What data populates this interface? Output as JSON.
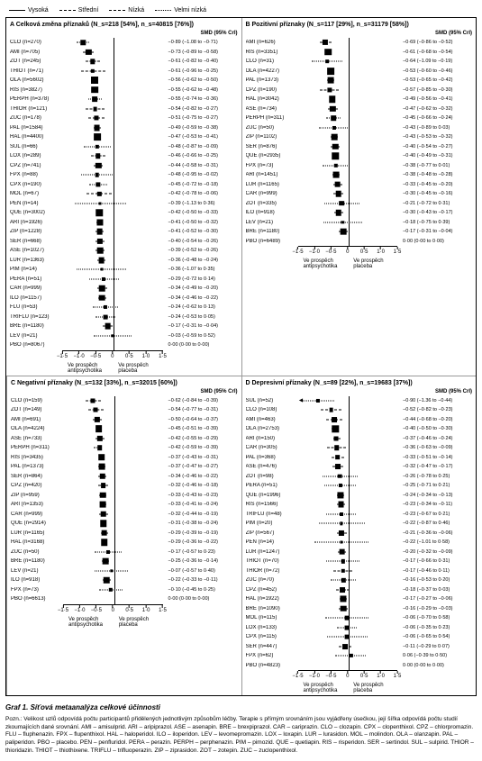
{
  "legend": [
    {
      "label": "Vysoká",
      "dash": "solid"
    },
    {
      "label": "Střední",
      "dash": "line-dot"
    },
    {
      "label": "Nízká",
      "dash": "dashed"
    },
    {
      "label": "Velmi nízká",
      "dash": "dotted"
    }
  ],
  "plot": {
    "xlim": [
      -1.5,
      1.5
    ],
    "ticks": [
      -1.5,
      -1.0,
      -0.5,
      0,
      0.5,
      1.0,
      1.5
    ],
    "ref_lines": [
      {
        "x": 0,
        "style": "solid",
        "color": "#000"
      }
    ],
    "axis_left_label": "Ve prospěch antipsychotika",
    "axis_right_label": "Ve prospěch placeba",
    "hdr_smd": "SMD (95% CrI)",
    "marker_min": 3,
    "marker_max": 8
  },
  "panels": [
    {
      "id": "A",
      "title": "A   Celková změna příznaků (N_s=218 [54%], n_s=40815 [76%])",
      "rows": [
        {
          "drug": "CLO",
          "n": 270,
          "est": -0.89,
          "lo": -1.08,
          "hi": -0.71,
          "dash": "dotted"
        },
        {
          "drug": "AMI",
          "n": 705,
          "est": -0.73,
          "lo": -0.89,
          "hi": -0.58,
          "dash": "dashed"
        },
        {
          "drug": "ZOT",
          "n": 245,
          "est": -0.61,
          "lo": -0.82,
          "hi": -0.4,
          "dash": "dashed"
        },
        {
          "drug": "THIOT",
          "n": 71,
          "est": -0.61,
          "lo": -0.96,
          "hi": -0.25,
          "dash": "dashed"
        },
        {
          "drug": "OLA",
          "n": 5602,
          "est": -0.56,
          "lo": -0.62,
          "hi": -0.5,
          "dash": "solid"
        },
        {
          "drug": "RIS",
          "n": 3827,
          "est": -0.55,
          "lo": -0.62,
          "hi": -0.48,
          "dash": "solid"
        },
        {
          "drug": "PERPH",
          "n": 378,
          "est": -0.55,
          "lo": -0.74,
          "hi": -0.36,
          "dash": "dotted"
        },
        {
          "drug": "THIOR",
          "n": 121,
          "est": -0.54,
          "lo": -0.82,
          "hi": -0.27,
          "dash": "dashed"
        },
        {
          "drug": "ZUC",
          "n": 178,
          "est": -0.51,
          "lo": -0.75,
          "hi": -0.27,
          "dash": "dashed"
        },
        {
          "drug": "PAL",
          "n": 1584,
          "est": -0.49,
          "lo": -0.59,
          "hi": -0.38,
          "dash": "solid"
        },
        {
          "drug": "HAL",
          "n": 4400,
          "est": -0.47,
          "lo": -0.53,
          "hi": -0.41,
          "dash": "solid"
        },
        {
          "drug": "SUL",
          "n": 66,
          "est": -0.48,
          "lo": -0.87,
          "hi": -0.09,
          "dash": "dotted"
        },
        {
          "drug": "LOX",
          "n": 289,
          "est": -0.46,
          "lo": -0.66,
          "hi": -0.25,
          "dash": "dashed"
        },
        {
          "drug": "CPZ",
          "n": 741,
          "est": -0.44,
          "lo": -0.58,
          "hi": -0.31,
          "dash": "dashed"
        },
        {
          "drug": "FPX",
          "n": 88,
          "est": -0.48,
          "lo": -0.95,
          "hi": -0.02,
          "dash": "dotted"
        },
        {
          "drug": "CPX",
          "n": 190,
          "est": -0.45,
          "lo": -0.72,
          "hi": -0.18,
          "dash": "dotted"
        },
        {
          "drug": "MOL",
          "n": 67,
          "est": -0.42,
          "lo": -0.78,
          "hi": -0.06,
          "dash": "dashed"
        },
        {
          "drug": "PEN",
          "n": 14,
          "est": -0.39,
          "lo": -1.13,
          "hi": 0.36,
          "dash": "dotted"
        },
        {
          "drug": "QUE",
          "n": 3002,
          "est": -0.42,
          "lo": -0.5,
          "hi": -0.33,
          "dash": "line-dot"
        },
        {
          "drug": "ARI",
          "n": 1926,
          "est": -0.41,
          "lo": -0.5,
          "hi": -0.32,
          "dash": "solid"
        },
        {
          "drug": "ZIP",
          "n": 1228,
          "est": -0.41,
          "lo": -0.52,
          "hi": -0.3,
          "dash": "line-dot"
        },
        {
          "drug": "SER",
          "n": 668,
          "est": -0.4,
          "lo": -0.54,
          "hi": -0.26,
          "dash": "line-dot"
        },
        {
          "drug": "ASE",
          "n": 1027,
          "est": -0.39,
          "lo": -0.52,
          "hi": -0.26,
          "dash": "solid"
        },
        {
          "drug": "LUR",
          "n": 1363,
          "est": -0.36,
          "lo": -0.48,
          "hi": -0.24,
          "dash": "solid"
        },
        {
          "drug": "PIM",
          "n": 14,
          "est": -0.36,
          "lo": -1.07,
          "hi": 0.35,
          "dash": "dotted"
        },
        {
          "drug": "PERA",
          "n": 51,
          "est": -0.29,
          "lo": -0.72,
          "hi": 0.14,
          "dash": "dotted"
        },
        {
          "drug": "CAR",
          "n": 999,
          "est": -0.34,
          "lo": -0.49,
          "hi": -0.2,
          "dash": "solid"
        },
        {
          "drug": "ILO",
          "n": 1157,
          "est": -0.34,
          "lo": -0.46,
          "hi": -0.22,
          "dash": "line-dot"
        },
        {
          "drug": "FLU",
          "n": 53,
          "est": -0.24,
          "lo": -0.62,
          "hi": 0.13,
          "dash": "dotted"
        },
        {
          "drug": "TRIFLU",
          "n": 123,
          "est": -0.24,
          "lo": -0.53,
          "hi": 0.05,
          "dash": "dotted"
        },
        {
          "drug": "BRE",
          "n": 1180,
          "est": -0.17,
          "lo": -0.31,
          "hi": -0.04,
          "dash": "line-dot"
        },
        {
          "drug": "LEV",
          "n": 21,
          "est": -0.03,
          "lo": -0.59,
          "hi": 0.52,
          "dash": "dotted"
        },
        {
          "drug": "PBO",
          "n": 8067,
          "est": 0.0,
          "lo": 0.0,
          "hi": 0.0,
          "ref": true
        }
      ]
    },
    {
      "id": "B",
      "title": "B   Pozitivní příznaky (N_s=117 [29%], n_s=31179 [58%])",
      "rows": [
        {
          "drug": "AMI",
          "n": 626,
          "est": -0.69,
          "lo": -0.86,
          "hi": -0.52,
          "dash": "line-dot"
        },
        {
          "drug": "RIS",
          "n": 3351,
          "est": -0.61,
          "lo": -0.68,
          "hi": -0.54,
          "dash": "solid"
        },
        {
          "drug": "CLO",
          "n": 31,
          "est": -0.64,
          "lo": -1.09,
          "hi": -0.19,
          "dash": "dotted"
        },
        {
          "drug": "OLA",
          "n": 4227,
          "est": -0.53,
          "lo": -0.6,
          "hi": -0.46,
          "dash": "solid"
        },
        {
          "drug": "PAL",
          "n": 1373,
          "est": -0.53,
          "lo": -0.65,
          "hi": -0.42,
          "dash": "solid"
        },
        {
          "drug": "CPZ",
          "n": 190,
          "est": -0.57,
          "lo": -0.85,
          "hi": -0.3,
          "dash": "dashed"
        },
        {
          "drug": "HAL",
          "n": 3042,
          "est": -0.49,
          "lo": -0.56,
          "hi": -0.41,
          "dash": "solid"
        },
        {
          "drug": "ASE",
          "n": 734,
          "est": -0.47,
          "lo": -0.62,
          "hi": -0.32,
          "dash": "solid"
        },
        {
          "drug": "PERPH",
          "n": 311,
          "est": -0.45,
          "lo": -0.66,
          "hi": -0.24,
          "dash": "dotted"
        },
        {
          "drug": "ZUC",
          "n": 50,
          "est": -0.43,
          "lo": -0.89,
          "hi": 0.03,
          "dash": "dotted"
        },
        {
          "drug": "ZIP",
          "n": 1102,
          "est": -0.43,
          "lo": -0.53,
          "hi": -0.32,
          "dash": "line-dot"
        },
        {
          "drug": "SER",
          "n": 876,
          "est": -0.4,
          "lo": -0.54,
          "hi": -0.27,
          "dash": "line-dot"
        },
        {
          "drug": "QUE",
          "n": 2935,
          "est": -0.4,
          "lo": -0.49,
          "hi": -0.31,
          "dash": "solid"
        },
        {
          "drug": "FPX",
          "n": 73,
          "est": -0.38,
          "lo": -0.77,
          "hi": 0.01,
          "dash": "dotted"
        },
        {
          "drug": "ARI",
          "n": 1451,
          "est": -0.38,
          "lo": -0.48,
          "hi": -0.28,
          "dash": "solid"
        },
        {
          "drug": "LUR",
          "n": 1165,
          "est": -0.33,
          "lo": -0.45,
          "hi": -0.2,
          "dash": "solid"
        },
        {
          "drug": "CAR",
          "n": 999,
          "est": -0.3,
          "lo": -0.45,
          "hi": -0.16,
          "dash": "solid"
        },
        {
          "drug": "ZOT",
          "n": 335,
          "est": -0.21,
          "lo": -0.72,
          "hi": 0.31,
          "dash": "dotted"
        },
        {
          "drug": "ILO",
          "n": 918,
          "est": -0.3,
          "lo": -0.43,
          "hi": -0.17,
          "dash": "line-dot"
        },
        {
          "drug": "LEV",
          "n": 21,
          "est": -0.18,
          "lo": -0.75,
          "hi": 0.39,
          "dash": "dotted"
        },
        {
          "drug": "BRE",
          "n": 1180,
          "est": -0.17,
          "lo": -0.31,
          "hi": -0.04,
          "dash": "line-dot"
        },
        {
          "drug": "PBO",
          "n": 6489,
          "est": 0.0,
          "lo": 0.0,
          "hi": 0.0,
          "ref": true
        }
      ]
    },
    {
      "id": "C",
      "title": "C   Negativní příznaky (N_s=132 [33%], n_s=32015 [60%])",
      "rows": [
        {
          "drug": "CLO",
          "n": 159,
          "est": -0.62,
          "lo": -0.84,
          "hi": -0.39,
          "dash": "dashed"
        },
        {
          "drug": "ZOT",
          "n": 149,
          "est": -0.54,
          "lo": -0.77,
          "hi": -0.31,
          "dash": "dashed"
        },
        {
          "drug": "AMI",
          "n": 691,
          "est": -0.5,
          "lo": -0.64,
          "hi": -0.37,
          "dash": "line-dot"
        },
        {
          "drug": "OLA",
          "n": 4224,
          "est": -0.45,
          "lo": -0.51,
          "hi": -0.39,
          "dash": "solid"
        },
        {
          "drug": "ASE",
          "n": 733,
          "est": -0.42,
          "lo": -0.55,
          "hi": -0.29,
          "dash": "solid"
        },
        {
          "drug": "PERPH",
          "n": 311,
          "est": -0.42,
          "lo": -0.59,
          "hi": -0.39,
          "dash": "dotted"
        },
        {
          "drug": "RIS",
          "n": 3435,
          "est": -0.37,
          "lo": -0.43,
          "hi": -0.31,
          "dash": "solid"
        },
        {
          "drug": "PAL",
          "n": 1373,
          "est": -0.37,
          "lo": -0.47,
          "hi": -0.27,
          "dash": "solid"
        },
        {
          "drug": "SER",
          "n": 864,
          "est": -0.34,
          "lo": -0.46,
          "hi": -0.22,
          "dash": "line-dot"
        },
        {
          "drug": "CPZ",
          "n": 420,
          "est": -0.32,
          "lo": -0.46,
          "hi": -0.18,
          "dash": "dashed"
        },
        {
          "drug": "ZIP",
          "n": 959,
          "est": -0.33,
          "lo": -0.43,
          "hi": -0.23,
          "dash": "line-dot"
        },
        {
          "drug": "ARI",
          "n": 1353,
          "est": -0.33,
          "lo": -0.41,
          "hi": -0.24,
          "dash": "solid"
        },
        {
          "drug": "CAR",
          "n": 999,
          "est": -0.32,
          "lo": -0.44,
          "hi": -0.19,
          "dash": "solid"
        },
        {
          "drug": "QUE",
          "n": 2914,
          "est": -0.31,
          "lo": -0.38,
          "hi": -0.24,
          "dash": "line-dot"
        },
        {
          "drug": "LUR",
          "n": 1165,
          "est": -0.29,
          "lo": -0.39,
          "hi": -0.19,
          "dash": "solid"
        },
        {
          "drug": "HAL",
          "n": 3168,
          "est": -0.29,
          "lo": -0.36,
          "hi": -0.22,
          "dash": "solid"
        },
        {
          "drug": "ZUC",
          "n": 50,
          "est": -0.17,
          "lo": -0.57,
          "hi": 0.23,
          "dash": "dotted"
        },
        {
          "drug": "BRE",
          "n": 1180,
          "est": -0.25,
          "lo": -0.36,
          "hi": -0.14,
          "dash": "solid"
        },
        {
          "drug": "LEV",
          "n": 21,
          "est": -0.07,
          "lo": -0.57,
          "hi": 0.4,
          "dash": "dotted"
        },
        {
          "drug": "ILO",
          "n": 918,
          "est": -0.22,
          "lo": -0.33,
          "hi": -0.11,
          "dash": "line-dot"
        },
        {
          "drug": "FPX",
          "n": 73,
          "est": -0.1,
          "lo": -0.45,
          "hi": 0.25,
          "dash": "dotted"
        },
        {
          "drug": "PBO",
          "n": 6613,
          "est": 0.0,
          "lo": 0.0,
          "hi": 0.0,
          "ref": true
        }
      ]
    },
    {
      "id": "D",
      "title": "D   Depresivní příznaky (N_s=89 [22%], n_s=19683 [37%])",
      "rows": [
        {
          "drug": "SUL",
          "n": 52,
          "est": -0.9,
          "lo": -1.36,
          "hi": -0.44,
          "dash": "dotted",
          "arrow_l": true
        },
        {
          "drug": "CLO",
          "n": 108,
          "est": -0.52,
          "lo": -0.82,
          "hi": -0.23,
          "dash": "dashed"
        },
        {
          "drug": "AMI",
          "n": 463,
          "est": -0.44,
          "lo": -0.68,
          "hi": -0.2,
          "dash": "dashed"
        },
        {
          "drug": "OLA",
          "n": 2753,
          "est": -0.4,
          "lo": -0.5,
          "hi": -0.3,
          "dash": "solid"
        },
        {
          "drug": "ARI",
          "n": 150,
          "est": -0.37,
          "lo": -0.46,
          "hi": -0.24,
          "dash": "dashed"
        },
        {
          "drug": "CAR",
          "n": 305,
          "est": -0.36,
          "lo": -0.63,
          "hi": -0.09,
          "dash": "line-dot"
        },
        {
          "drug": "PAL",
          "n": 368,
          "est": -0.33,
          "lo": -0.51,
          "hi": -0.14,
          "dash": "line-dot"
        },
        {
          "drug": "ASE",
          "n": 476,
          "est": -0.32,
          "lo": -0.47,
          "hi": -0.17,
          "dash": "line-dot"
        },
        {
          "drug": "ZOT",
          "n": 98,
          "est": -0.26,
          "lo": -0.78,
          "hi": 0.25,
          "dash": "dotted"
        },
        {
          "drug": "PERA",
          "n": 51,
          "est": -0.25,
          "lo": -0.71,
          "hi": 0.21,
          "dash": "dotted"
        },
        {
          "drug": "QUE",
          "n": 1996,
          "est": -0.24,
          "lo": -0.34,
          "hi": -0.13,
          "dash": "solid"
        },
        {
          "drug": "RIS",
          "n": 1566,
          "est": -0.23,
          "lo": -0.34,
          "hi": -0.11,
          "dash": "solid"
        },
        {
          "drug": "TRIFLU",
          "n": 48,
          "est": -0.23,
          "lo": -0.67,
          "hi": 0.21,
          "dash": "dotted"
        },
        {
          "drug": "PIM",
          "n": 20,
          "est": -0.22,
          "lo": -0.87,
          "hi": 0.46,
          "dash": "dotted"
        },
        {
          "drug": "ZIP",
          "n": 567,
          "est": -0.21,
          "lo": -0.36,
          "hi": -0.06,
          "dash": "line-dot"
        },
        {
          "drug": "PEN",
          "n": 14,
          "est": -0.22,
          "lo": -1.01,
          "hi": 0.58,
          "dash": "dotted"
        },
        {
          "drug": "LUR",
          "n": 1247,
          "est": -0.2,
          "lo": -0.32,
          "hi": -0.09,
          "dash": "solid"
        },
        {
          "drug": "THIOT",
          "n": 70,
          "est": -0.17,
          "lo": -0.66,
          "hi": 0.31,
          "dash": "dotted"
        },
        {
          "drug": "THIOR",
          "n": 72,
          "est": -0.17,
          "lo": -0.46,
          "hi": 0.11,
          "dash": "dashed"
        },
        {
          "drug": "ZUC",
          "n": 70,
          "est": -0.16,
          "lo": -0.53,
          "hi": 0.2,
          "dash": "dotted"
        },
        {
          "drug": "CPZ",
          "n": 452,
          "est": -0.18,
          "lo": -0.37,
          "hi": 0.03,
          "dash": "dashed"
        },
        {
          "drug": "HAL",
          "n": 1922,
          "est": -0.17,
          "lo": -0.27,
          "hi": -0.06,
          "dash": "solid"
        },
        {
          "drug": "BRE",
          "n": 1090,
          "est": -0.16,
          "lo": -0.29,
          "hi": -0.03,
          "dash": "line-dot"
        },
        {
          "drug": "MOL",
          "n": 115,
          "est": -0.06,
          "lo": -0.7,
          "hi": 0.58,
          "dash": "dotted"
        },
        {
          "drug": "LOX",
          "n": 133,
          "est": -0.06,
          "lo": -0.35,
          "hi": 0.23,
          "dash": "dotted"
        },
        {
          "drug": "CPX",
          "n": 115,
          "est": -0.06,
          "lo": -0.65,
          "hi": 0.54,
          "dash": "dotted"
        },
        {
          "drug": "SER",
          "n": 447,
          "est": -0.11,
          "lo": -0.29,
          "hi": 0.07,
          "dash": "line-dot"
        },
        {
          "drug": "FPX",
          "n": 62,
          "est": 0.06,
          "lo": -0.39,
          "hi": 0.5,
          "dash": "dotted"
        },
        {
          "drug": "PBO",
          "n": 4823,
          "est": 0.0,
          "lo": 0.0,
          "hi": 0.0,
          "ref": true
        }
      ]
    }
  ],
  "caption": {
    "title": "Graf 1. Síťová metaanalýza celkové účinnosti",
    "body": "Pozn.: Velikost uzlů odpovídá počtu participantů přidělených jednotlivým způsobům léčby. Terapie s přímým srovnáním jsou vyjádřeny úsečkou, její šířka odpovídá počtu studií zkoumajících dané srovnání. AMI – amisulprid. ARI – aripiprazol. ASE – asenapin. BRE – brexpiprazol. CAR – cariprazin. CLO – clozapin. CPX – clopenthixol. CPZ – chlorpromazin. FLU – fluphenazin. FPX – flupenthixol. HAL – haloperidol. ILO – iloperidon. LEV – levomepromazin. LOX – loxapin. LUR – lurasidon. MOL – molindon. OLA – olanzapin. PAL – paliperidon. PBO – placebo. PEN – penfluridol. PERA – perazin. PERPH – perphenazin. PIM – pimozid. QUE – quetiapin. RIS – risperidon. SER – sertindol. SUL – sulpirid. THIOR – thioridazin. THIOT – thiothixene. TRIFLU – trifluoperazin. ZIP – ziprasidon. ZOT – zotepin. ZUC – zuclopenthixol."
  },
  "colors": {
    "text": "#000000",
    "grid": "#aaaaaa",
    "nonsig": "#000000"
  }
}
